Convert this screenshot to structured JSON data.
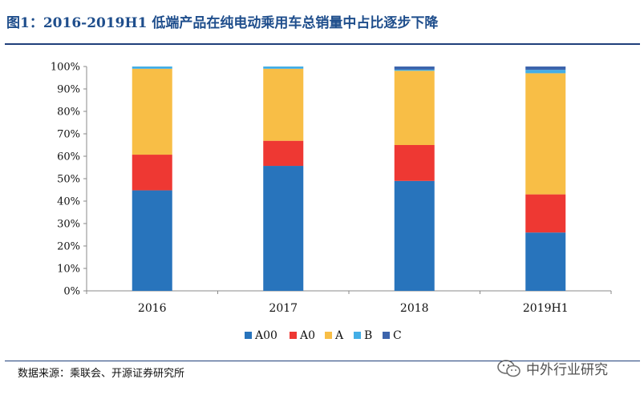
{
  "title": "图1：2016-2019H1 低端产品在纯电动乘用车总销量中占比逐步下降",
  "source": "数据来源：乘联会、开源证券研究所",
  "watermark": "中外行业研究",
  "colors": {
    "A00": "#2874bc",
    "A0": "#ee3833",
    "A": "#f8be46",
    "B": "#43aee6",
    "C": "#3c64ac",
    "title": "#1f4e8c"
  },
  "chart_data": {
    "type": "bar",
    "stacked": true,
    "title": "",
    "xlabel": "",
    "ylabel": "",
    "ylim": [
      0,
      100
    ],
    "y_ticks": [
      "0%",
      "10%",
      "20%",
      "30%",
      "40%",
      "50%",
      "60%",
      "70%",
      "80%",
      "90%",
      "100%"
    ],
    "categories": [
      "2016",
      "2017",
      "2018",
      "2019H1"
    ],
    "series": [
      {
        "name": "A00",
        "values": [
          44.8,
          55.7,
          49.0,
          26.0
        ]
      },
      {
        "name": "A0",
        "values": [
          15.9,
          11.2,
          16.0,
          17.0
        ]
      },
      {
        "name": "A",
        "values": [
          38.3,
          32.1,
          33.1,
          54.0
        ]
      },
      {
        "name": "B",
        "values": [
          1.0,
          1.0,
          0.5,
          1.5
        ]
      },
      {
        "name": "C",
        "values": [
          0.0,
          0.0,
          1.4,
          1.5
        ]
      }
    ],
    "legend_position": "bottom"
  }
}
